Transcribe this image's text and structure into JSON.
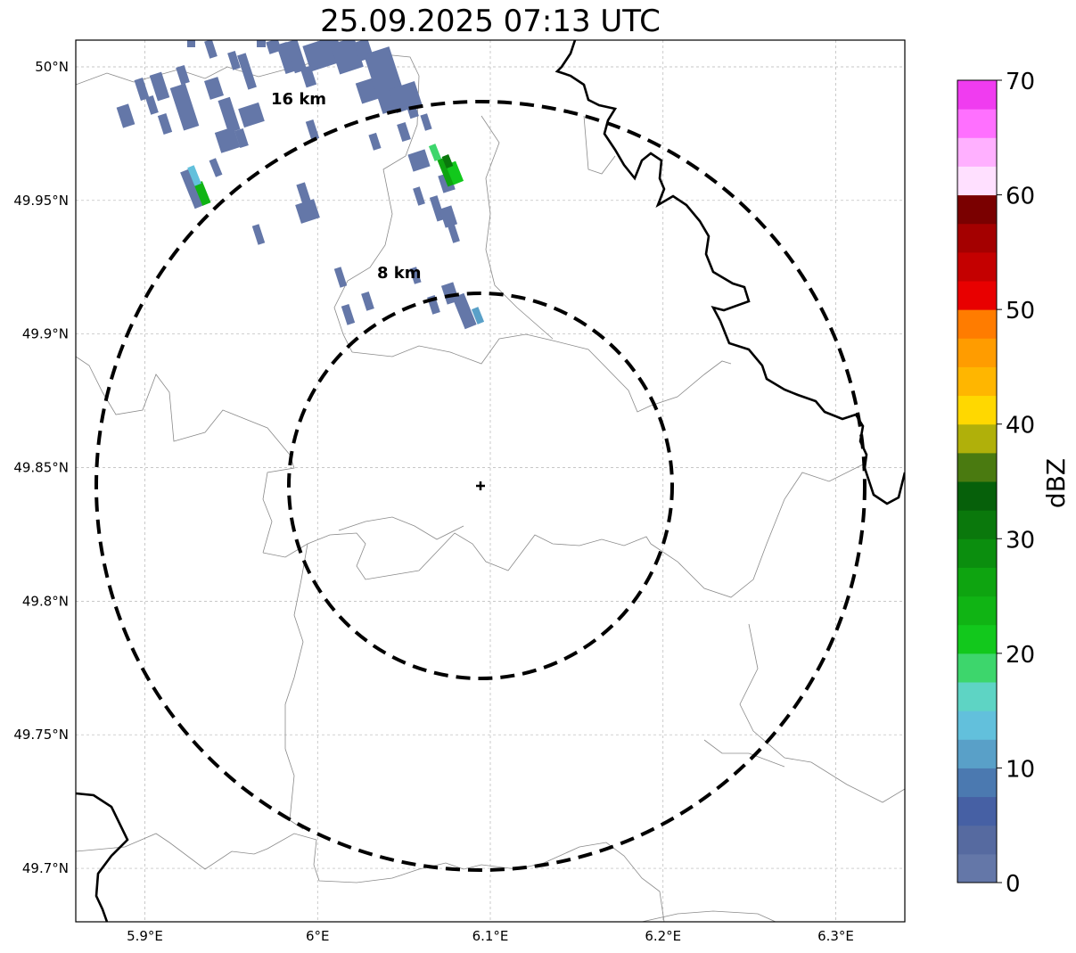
{
  "title": "25.09.2025 07:13 UTC",
  "map": {
    "lon_range": [
      5.86,
      6.34
    ],
    "lat_range": [
      49.68,
      50.01
    ],
    "lon_ticks": [
      {
        "value": 5.9,
        "label": "5.9°E"
      },
      {
        "value": 6.0,
        "label": "6°E"
      },
      {
        "value": 6.1,
        "label": "6.1°E"
      },
      {
        "value": 6.2,
        "label": "6.2°E"
      },
      {
        "value": 6.3,
        "label": "6.3°E"
      }
    ],
    "lat_ticks": [
      {
        "value": 50.0,
        "label": "50°N"
      },
      {
        "value": 49.95,
        "label": "49.95°N"
      },
      {
        "value": 49.9,
        "label": "49.9°N"
      },
      {
        "value": 49.85,
        "label": "49.85°N"
      },
      {
        "value": 49.8,
        "label": "49.8°N"
      },
      {
        "value": 49.75,
        "label": "49.75°N"
      },
      {
        "value": 49.7,
        "label": "49.7°N"
      }
    ],
    "radar_site": {
      "lon": 6.0965,
      "lat": 49.8435
    },
    "rings": [
      {
        "radius_km": 8,
        "label": "8 km"
      },
      {
        "radius_km": 16,
        "label": "16 km"
      }
    ],
    "echoes": [
      {
        "lon": 6.085,
        "lat": 49.962,
        "dbz": 30
      },
      {
        "lon": 6.078,
        "lat": 49.958,
        "dbz": 24
      },
      {
        "lon": 6.068,
        "lat": 49.967,
        "dbz": 18
      },
      {
        "lon": 5.935,
        "lat": 49.952,
        "dbz": 24
      },
      {
        "lon": 5.93,
        "lat": 49.96,
        "dbz": 14
      },
      {
        "lon": 6.088,
        "lat": 49.908,
        "dbz": 12
      }
    ]
  },
  "colorbar": {
    "label": "dBZ",
    "min": 0,
    "max": 70,
    "ticks": [
      0,
      10,
      20,
      30,
      40,
      50,
      60,
      70
    ],
    "colors": [
      "#6477a8",
      "#566aa0",
      "#4660a4",
      "#4b79b0",
      "#59a0c8",
      "#62c0dc",
      "#5ed4c4",
      "#3dd66c",
      "#12c81c",
      "#10b414",
      "#0ea410",
      "#0b8e0e",
      "#0a780c",
      "#06600a",
      "#4a7a10",
      "#b0b00a",
      "#ffd800",
      "#ffb600",
      "#ff9c00",
      "#ff7c00",
      "#e80000",
      "#c40000",
      "#a40000",
      "#7a0000",
      "#ffe0ff",
      "#ffb0ff",
      "#ff70ff",
      "#f03cf0"
    ]
  }
}
